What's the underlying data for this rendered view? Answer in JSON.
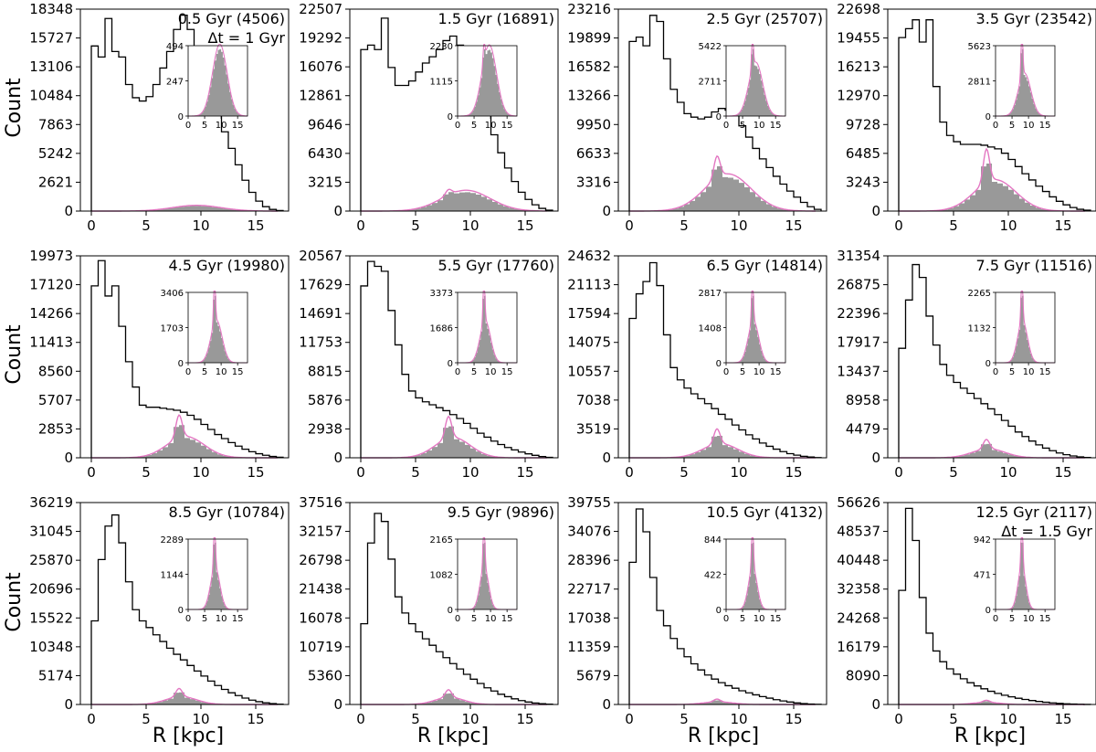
{
  "figure": {
    "ylabel": "Count",
    "xlabel": "R [kpc]",
    "colors": {
      "outer": "#000000",
      "fill": "#999999",
      "model": "#e377c2"
    }
  },
  "chart_data": {
    "type": "histogram-grid",
    "xlim": [
      -1,
      18
    ],
    "xticks": [
      0,
      5,
      10,
      15
    ],
    "inset_xlim": [
      0,
      18
    ],
    "inset_xticks": [
      0,
      5,
      10,
      15
    ],
    "panels": [
      {
        "label": "0.5 Gyr (4506)",
        "note": "Δt = 1 Gyr",
        "yticks": [
          0,
          2621,
          5242,
          7863,
          10484,
          13106,
          15727,
          18348
        ],
        "ymax": 18348,
        "outer": [
          15000,
          14000,
          17500,
          14500,
          14000,
          11500,
          10300,
          10000,
          10400,
          11500,
          13000,
          14500,
          16500,
          17800,
          16500,
          14800,
          13000,
          11000,
          9000,
          7200,
          5700,
          4200,
          2800,
          1700,
          900,
          400,
          150,
          50
        ],
        "inner_peak": 494,
        "inset_yticks": [
          0,
          247,
          494
        ],
        "spike": 0,
        "broad_center": 9.6,
        "broad_sigma": 2.2
      },
      {
        "label": "1.5 Gyr (16891)",
        "note": "",
        "yticks": [
          0,
          3215,
          6430,
          9646,
          12861,
          16076,
          19292,
          22507
        ],
        "ymax": 22507,
        "outer": [
          18000,
          18500,
          18000,
          21500,
          16000,
          14000,
          14000,
          14500,
          15500,
          16500,
          17200,
          18000,
          19000,
          19500,
          18500,
          17500,
          16000,
          13500,
          11000,
          8500,
          6500,
          4800,
          3300,
          2100,
          1300,
          700,
          300,
          100
        ],
        "inner_peak": 2230,
        "inset_yticks": [
          0,
          1115,
          2230
        ],
        "spike": 0.25,
        "broad_center": 9.6,
        "broad_sigma": 2.2
      },
      {
        "label": "2.5 Gyr (25707)",
        "note": "",
        "yticks": [
          0,
          3316,
          6633,
          9950,
          13266,
          16582,
          19899,
          23216
        ],
        "ymax": 23216,
        "outer": [
          19500,
          20000,
          19000,
          22500,
          21800,
          17500,
          14000,
          12500,
          11200,
          10800,
          10600,
          10800,
          11400,
          11800,
          11600,
          11000,
          9800,
          8500,
          7200,
          6000,
          5000,
          4000,
          3100,
          2300,
          1600,
          1000,
          500,
          200
        ],
        "inner_peak": 5422,
        "inset_yticks": [
          0,
          2711,
          5422
        ],
        "spike": 0.55,
        "broad_center": 9.0,
        "broad_sigma": 2.1
      },
      {
        "label": "3.5 Gyr (23542)",
        "note": "",
        "yticks": [
          0,
          3243,
          6485,
          9728,
          12970,
          16213,
          19455,
          22698
        ],
        "ymax": 22698,
        "outer": [
          19500,
          20500,
          21500,
          19000,
          21500,
          14000,
          10000,
          8500,
          7800,
          7500,
          7500,
          7500,
          7400,
          7200,
          7000,
          6500,
          5800,
          5000,
          4200,
          3500,
          2800,
          2200,
          1600,
          1100,
          700,
          400,
          200,
          100
        ],
        "inner_peak": 5623,
        "inset_yticks": [
          0,
          2811,
          5623
        ],
        "spike": 1.0,
        "broad_center": 8.8,
        "broad_sigma": 1.9
      },
      {
        "label": "4.5 Gyr (19980)",
        "note": "",
        "yticks": [
          0,
          2853,
          5707,
          8560,
          11413,
          14266,
          17120,
          19973
        ],
        "ymax": 19973,
        "outer": [
          17000,
          19500,
          16000,
          17000,
          13000,
          9500,
          7000,
          5200,
          5000,
          5000,
          4900,
          4800,
          4700,
          4500,
          4200,
          3800,
          3300,
          2800,
          2300,
          1900,
          1500,
          1150,
          850,
          600,
          400,
          250,
          130,
          50
        ],
        "inner_peak": 3406,
        "inset_yticks": [
          0,
          1703,
          3406
        ],
        "spike": 1.0,
        "broad_center": 8.6,
        "broad_sigma": 1.7
      },
      {
        "label": "5.5 Gyr (17760)",
        "note": "",
        "yticks": [
          0,
          2938,
          5876,
          8815,
          11753,
          14691,
          17629,
          20567
        ],
        "ymax": 20567,
        "outer": [
          17500,
          20000,
          19500,
          19000,
          15000,
          11500,
          8500,
          6800,
          6100,
          5700,
          5400,
          5100,
          4800,
          4400,
          4000,
          3500,
          3000,
          2500,
          2100,
          1700,
          1350,
          1050,
          800,
          580,
          400,
          250,
          130,
          50
        ],
        "inner_peak": 3373,
        "inset_yticks": [
          0,
          1686,
          3373
        ],
        "spike": 1.0,
        "broad_center": 8.4,
        "broad_sigma": 1.6
      },
      {
        "label": "6.5 Gyr (14814)",
        "note": "",
        "yticks": [
          0,
          3519,
          7038,
          10557,
          14075,
          17594,
          21113,
          24632
        ],
        "ymax": 24632,
        "outer": [
          17000,
          20000,
          21500,
          23800,
          21000,
          15000,
          11000,
          9500,
          8500,
          7800,
          7200,
          6600,
          6000,
          5300,
          4700,
          4000,
          3400,
          2800,
          2300,
          1800,
          1400,
          1050,
          750,
          500,
          320,
          180,
          90,
          30
        ],
        "inner_peak": 2817,
        "inset_yticks": [
          0,
          1408,
          2817
        ],
        "spike": 1.0,
        "broad_center": 8.3,
        "broad_sigma": 1.6
      },
      {
        "label": "7.5 Gyr (11516)",
        "note": "",
        "yticks": [
          0,
          4479,
          8958,
          13437,
          17917,
          22396,
          26875,
          31354
        ],
        "ymax": 31354,
        "outer": [
          17000,
          24500,
          30000,
          28000,
          22000,
          17500,
          14500,
          12800,
          11700,
          10800,
          10000,
          9200,
          8400,
          7600,
          6700,
          5800,
          4900,
          4000,
          3300,
          2600,
          2000,
          1500,
          1100,
          750,
          480,
          280,
          140,
          50
        ],
        "inner_peak": 2265,
        "inset_yticks": [
          0,
          1132,
          2265
        ],
        "spike": 1.0,
        "broad_center": 8.2,
        "broad_sigma": 1.5
      },
      {
        "label": "8.5 Gyr (10784)",
        "note": "",
        "yticks": [
          0,
          5174,
          10348,
          15522,
          20696,
          25870,
          31045,
          36219
        ],
        "ymax": 36219,
        "outer": [
          15000,
          26000,
          32000,
          34000,
          29000,
          22000,
          17000,
          15000,
          13800,
          12500,
          11300,
          10100,
          9000,
          8000,
          7000,
          6000,
          5100,
          4200,
          3400,
          2700,
          2100,
          1600,
          1150,
          780,
          500,
          300,
          150,
          60
        ],
        "inner_peak": 2289,
        "inset_yticks": [
          0,
          1144,
          2289
        ],
        "spike": 1.0,
        "broad_center": 8.2,
        "broad_sigma": 1.4
      },
      {
        "label": "9.5 Gyr (9896)",
        "note": "",
        "yticks": [
          0,
          5360,
          10719,
          16078,
          21438,
          26798,
          32157,
          37516
        ],
        "ymax": 37516,
        "outer": [
          15000,
          30000,
          35500,
          34000,
          27000,
          20000,
          17000,
          15000,
          13500,
          12200,
          11000,
          9800,
          8700,
          7600,
          6600,
          5600,
          4700,
          3900,
          3100,
          2500,
          1900,
          1450,
          1050,
          720,
          460,
          270,
          140,
          50
        ],
        "inner_peak": 2165,
        "inset_yticks": [
          0,
          1082,
          2165
        ],
        "spike": 1.0,
        "broad_center": 8.1,
        "broad_sigma": 1.3
      },
      {
        "label": "10.5 Gyr (4132)",
        "note": "",
        "yticks": [
          0,
          5679,
          11359,
          17038,
          22717,
          28396,
          34076,
          39755
        ],
        "ymax": 39755,
        "outer": [
          28000,
          38500,
          34000,
          25000,
          18500,
          15500,
          13000,
          11000,
          9400,
          8000,
          6800,
          5800,
          5000,
          4300,
          3700,
          3200,
          2700,
          2300,
          1900,
          1550,
          1250,
          950,
          700,
          480,
          300,
          170,
          80,
          30
        ],
        "inner_peak": 844,
        "inset_yticks": [
          0,
          422,
          844
        ],
        "spike": 1.0,
        "broad_center": 8.1,
        "broad_sigma": 1.3
      },
      {
        "label": "12.5 Gyr (2117)",
        "note": "Δt = 1.5 Gyr",
        "yticks": [
          0,
          8090,
          16179,
          24268,
          32358,
          40448,
          48537,
          56626
        ],
        "ymax": 56626,
        "outer": [
          32000,
          55000,
          46000,
          30000,
          20000,
          15000,
          12000,
          10000,
          8500,
          7200,
          6100,
          5200,
          4400,
          3700,
          3100,
          2600,
          2150,
          1750,
          1400,
          1100,
          850,
          630,
          450,
          310,
          200,
          120,
          60,
          20
        ],
        "inner_peak": 942,
        "inset_yticks": [
          0,
          471,
          942
        ],
        "spike": 1.0,
        "broad_center": 8.0,
        "broad_sigma": 1.2
      }
    ]
  }
}
